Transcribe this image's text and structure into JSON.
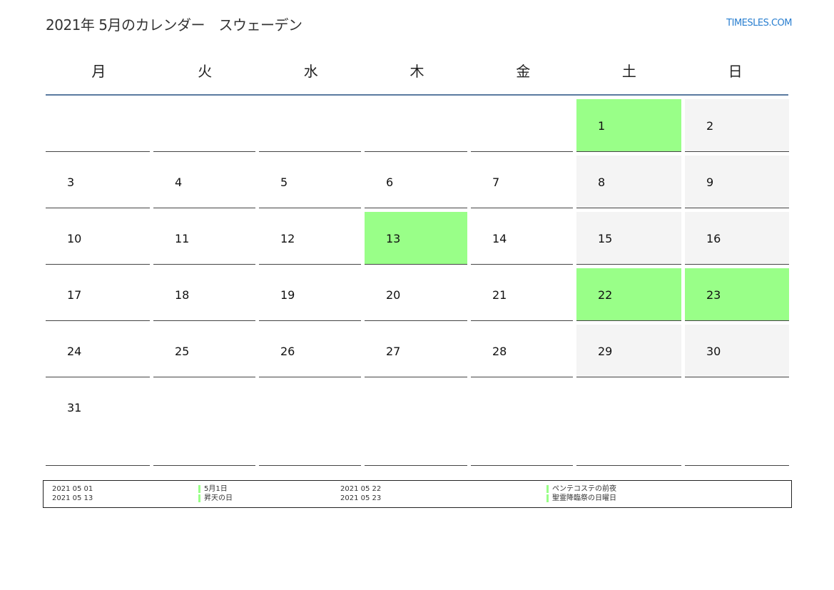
{
  "header": {
    "title": "2021年 5月のカレンダー　スウェーデン",
    "logo": "TIMESLES.COM"
  },
  "weekdays": [
    "月",
    "火",
    "水",
    "木",
    "金",
    "土",
    "日"
  ],
  "colors": {
    "holiday": "#99ff88",
    "weekend": "#f4f4f4",
    "header_line": "#5a7aa0",
    "logo": "#2a7fd0"
  },
  "weeks": [
    [
      null,
      null,
      null,
      null,
      null,
      {
        "day": "1",
        "type": "holiday"
      },
      {
        "day": "2",
        "type": "weekend"
      }
    ],
    [
      {
        "day": "3"
      },
      {
        "day": "4"
      },
      {
        "day": "5"
      },
      {
        "day": "6"
      },
      {
        "day": "7"
      },
      {
        "day": "8",
        "type": "weekend"
      },
      {
        "day": "9",
        "type": "weekend"
      }
    ],
    [
      {
        "day": "10"
      },
      {
        "day": "11"
      },
      {
        "day": "12"
      },
      {
        "day": "13",
        "type": "holiday"
      },
      {
        "day": "14"
      },
      {
        "day": "15",
        "type": "weekend"
      },
      {
        "day": "16",
        "type": "weekend"
      }
    ],
    [
      {
        "day": "17"
      },
      {
        "day": "18"
      },
      {
        "day": "19"
      },
      {
        "day": "20"
      },
      {
        "day": "21"
      },
      {
        "day": "22",
        "type": "holiday"
      },
      {
        "day": "23",
        "type": "holiday"
      }
    ],
    [
      {
        "day": "24"
      },
      {
        "day": "25"
      },
      {
        "day": "26"
      },
      {
        "day": "27"
      },
      {
        "day": "28"
      },
      {
        "day": "29",
        "type": "weekend"
      },
      {
        "day": "30",
        "type": "weekend"
      }
    ],
    [
      {
        "day": "31"
      },
      null,
      null,
      null,
      null,
      null,
      null
    ]
  ],
  "holidays": [
    {
      "date": "2021 05 01",
      "name": "5月1日"
    },
    {
      "date": "2021 05 13",
      "name": "昇天の日"
    },
    {
      "date": "2021 05 22",
      "name": "ペンテコステの前夜"
    },
    {
      "date": "2021 05 23",
      "name": "聖霊降臨祭の日曜日"
    }
  ]
}
